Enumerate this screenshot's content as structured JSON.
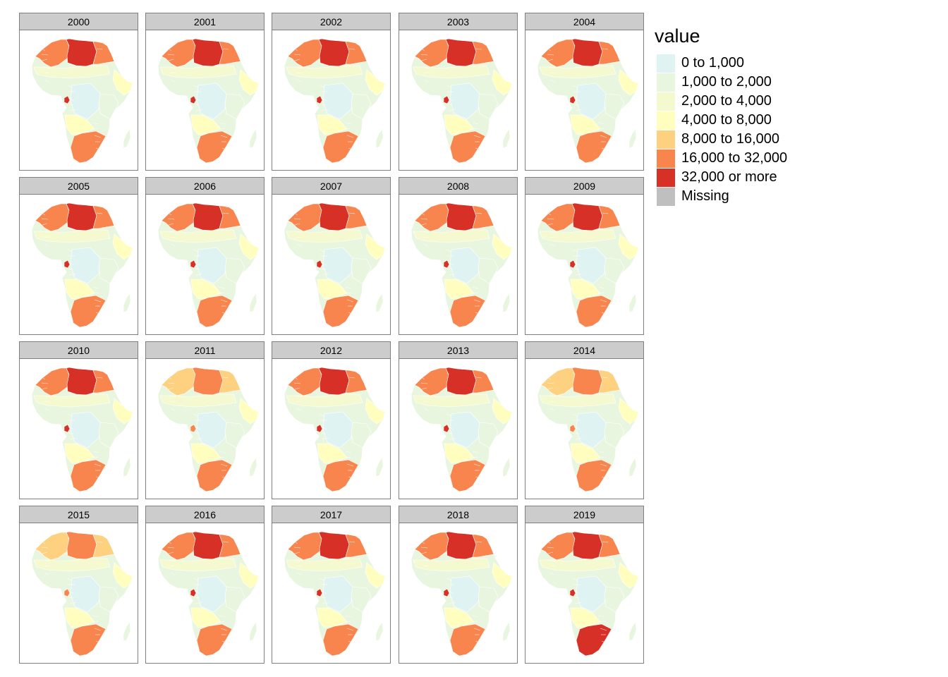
{
  "map": {
    "region": "Africa",
    "layout": "facet grid, 4 rows x 5 columns"
  },
  "panels": [
    {
      "year": "2000",
      "north_class": 6,
      "south_class": 5
    },
    {
      "year": "2001",
      "north_class": 6,
      "south_class": 5
    },
    {
      "year": "2002",
      "north_class": 6,
      "south_class": 5
    },
    {
      "year": "2003",
      "north_class": 6,
      "south_class": 5
    },
    {
      "year": "2004",
      "north_class": 6,
      "south_class": 5
    },
    {
      "year": "2005",
      "north_class": 6,
      "south_class": 5
    },
    {
      "year": "2006",
      "north_class": 6,
      "south_class": 5
    },
    {
      "year": "2007",
      "north_class": 6,
      "south_class": 5
    },
    {
      "year": "2008",
      "north_class": 6,
      "south_class": 5
    },
    {
      "year": "2009",
      "north_class": 6,
      "south_class": 5
    },
    {
      "year": "2010",
      "north_class": 6,
      "south_class": 5
    },
    {
      "year": "2011",
      "north_class": 5,
      "south_class": 5
    },
    {
      "year": "2012",
      "north_class": 6,
      "south_class": 5
    },
    {
      "year": "2013",
      "north_class": 6,
      "south_class": 5
    },
    {
      "year": "2014",
      "north_class": 5,
      "south_class": 5
    },
    {
      "year": "2015",
      "north_class": 5,
      "south_class": 5
    },
    {
      "year": "2016",
      "north_class": 6,
      "south_class": 5
    },
    {
      "year": "2017",
      "north_class": 6,
      "south_class": 5
    },
    {
      "year": "2018",
      "north_class": 6,
      "south_class": 5
    },
    {
      "year": "2019",
      "north_class": 6,
      "south_class": 6
    }
  ],
  "legend": {
    "title": "value",
    "items": [
      {
        "label": "0 to 1,000",
        "color": "#e0f3f3"
      },
      {
        "label": "1,000 to 2,000",
        "color": "#e9f6df"
      },
      {
        "label": "2,000 to 4,000",
        "color": "#f4f9cf"
      },
      {
        "label": "4,000 to 8,000",
        "color": "#fffebe"
      },
      {
        "label": "8,000 to 16,000",
        "color": "#fed181"
      },
      {
        "label": "16,000 to 32,000",
        "color": "#f8844e"
      },
      {
        "label": "32,000 or more",
        "color": "#d73027"
      },
      {
        "label": "Missing",
        "color": "#bfbfbf"
      }
    ]
  }
}
